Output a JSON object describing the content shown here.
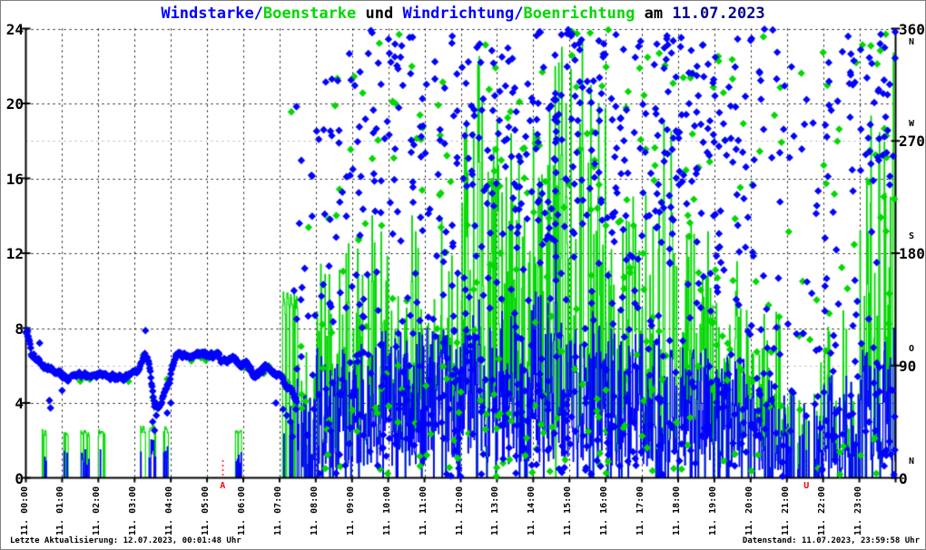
{
  "title": {
    "parts": [
      {
        "text": "Windstarke/",
        "color": "#0000ff"
      },
      {
        "text": "Boenstarke",
        "color": "#00d800"
      },
      {
        "text": " und ",
        "color": "#000000"
      },
      {
        "text": "Windrichtung/",
        "color": "#0000ff"
      },
      {
        "text": "Boenrichtung",
        "color": "#00d800"
      },
      {
        "text": " am ",
        "color": "#000000"
      },
      {
        "text": "11.07.2023",
        "color": "#000090"
      }
    ]
  },
  "footer": {
    "last_update": "Letzte Aktualisierung: 12.07.2023, 00:01:48 Uhr",
    "datenstand": "Datenstand: 11.07.2023, 23:59:58 Uhr"
  },
  "chart_data": {
    "type": "line+scatter",
    "seed": 20230711,
    "x_axis": {
      "range_hours": [
        0,
        24
      ],
      "tick_labels": [
        "11. 00:00",
        "11. 01:00",
        "11. 02:00",
        "11. 03:00",
        "11. 04:00",
        "11. 05:00",
        "11. 06:00",
        "11. 07:00",
        "11. 08:00",
        "11. 09:00",
        "11. 10:00",
        "11. 11:00",
        "11. 12:00",
        "11. 13:00",
        "11. 14:00",
        "11. 15:00",
        "11. 16:00",
        "11. 17:00",
        "11. 18:00",
        "11. 19:00",
        "11. 20:00",
        "11. 21:00",
        "11. 22:00",
        "11. 23:00"
      ]
    },
    "y_left": {
      "range": [
        0,
        24
      ],
      "ticks": [
        0,
        4,
        8,
        12,
        16,
        20,
        24
      ]
    },
    "y_right": {
      "range": [
        0,
        360
      ],
      "ticks": [
        0,
        90,
        180,
        270,
        360
      ],
      "compass": [
        "N",
        "O",
        "S",
        "W",
        "N"
      ],
      "gray_gridlines_deg": [
        90,
        270
      ]
    },
    "sun_markers": [
      {
        "label": "A",
        "time_h": 5.43,
        "color": "#ff0000"
      },
      {
        "label": "U",
        "time_h": 21.54,
        "color": "#ff0000"
      }
    ],
    "colors": {
      "wind": "#0000ff",
      "gust": "#00d800",
      "grid": "#000000",
      "grid_gray": "#b0b0b0",
      "background": "#ffffff"
    },
    "series": {
      "windstaerke": {
        "legend": "Windstarke",
        "axis": "left",
        "color": "#0000ff",
        "hourly_max": [
          1.6,
          1.6,
          1.6,
          2.2,
          0.2,
          1.6,
          0.2,
          5.5,
          7,
          8,
          8,
          8.5,
          9,
          9,
          10,
          9,
          8.5,
          8,
          7,
          6.5,
          5.5,
          4.5,
          5.5,
          8
        ],
        "hourly_activity": [
          0.07,
          0.12,
          0.08,
          0.25,
          0.01,
          0.06,
          0.02,
          0.55,
          0.85,
          0.92,
          0.95,
          0.95,
          0.95,
          0.95,
          0.95,
          0.95,
          0.93,
          0.93,
          0.92,
          0.88,
          0.75,
          0.45,
          0.75,
          0.88
        ],
        "events": [
          [
            12.5,
            9.5
          ],
          [
            14.62,
            12.5
          ],
          [
            23.95,
            8
          ]
        ]
      },
      "boenstaerke": {
        "legend": "Boenstarke",
        "axis": "left",
        "color": "#00d800",
        "hourly_max": [
          2.6,
          2.6,
          2.6,
          2.8,
          0.3,
          2.6,
          0.3,
          10,
          12.5,
          14,
          14,
          15,
          22.5,
          19,
          23.5,
          23,
          17,
          19,
          14,
          12,
          9,
          8,
          9,
          23
        ],
        "morning_windows": [
          [
            0.44,
            0.56
          ],
          [
            1.04,
            1.16
          ],
          [
            1.5,
            1.78
          ],
          [
            2.0,
            2.17
          ],
          [
            3.12,
            3.3
          ],
          [
            3.38,
            3.58
          ],
          [
            3.8,
            3.92
          ],
          [
            5.78,
            5.95
          ],
          [
            7.08,
            7.5
          ]
        ],
        "events": [
          [
            8.9,
            12.5
          ],
          [
            9.55,
            14
          ],
          [
            10.65,
            14
          ],
          [
            12.5,
            22.5
          ],
          [
            12.85,
            16
          ],
          [
            13.0,
            19
          ],
          [
            14.15,
            15
          ],
          [
            14.78,
            23
          ],
          [
            14.9,
            20
          ],
          [
            15.35,
            23.5
          ],
          [
            15.8,
            20
          ],
          [
            16.75,
            15
          ],
          [
            17.6,
            19
          ],
          [
            17.8,
            18.5
          ],
          [
            23.93,
            22.7
          ]
        ]
      },
      "windrichtung": {
        "legend": "Windrichtung",
        "axis": "right",
        "color": "#0000ff",
        "morning_line_deg": [
          [
            0,
            116
          ],
          [
            0.08,
            112
          ],
          [
            0.15,
            99
          ],
          [
            0.35,
            95
          ],
          [
            0.55,
            89
          ],
          [
            0.75,
            87
          ],
          [
            1.0,
            82
          ],
          [
            1.2,
            80
          ],
          [
            1.45,
            84
          ],
          [
            1.7,
            82
          ],
          [
            1.95,
            83
          ],
          [
            2.2,
            82
          ],
          [
            2.45,
            82
          ],
          [
            2.7,
            80
          ],
          [
            2.9,
            83
          ],
          [
            3.1,
            86
          ],
          [
            3.25,
            96
          ],
          [
            3.35,
            99
          ],
          [
            3.45,
            80
          ],
          [
            3.55,
            60
          ],
          [
            3.65,
            55
          ],
          [
            3.75,
            63
          ],
          [
            3.85,
            70
          ],
          [
            3.95,
            75
          ],
          [
            4.05,
            88
          ],
          [
            4.15,
            97
          ],
          [
            4.3,
            98
          ],
          [
            5.3,
            98
          ],
          [
            5.45,
            92
          ],
          [
            5.6,
            94
          ],
          [
            5.75,
            95
          ],
          [
            5.9,
            91
          ],
          [
            6.05,
            92
          ],
          [
            6.2,
            86
          ],
          [
            6.35,
            82
          ],
          [
            6.5,
            86
          ],
          [
            6.65,
            88
          ],
          [
            6.8,
            84
          ],
          [
            7.0,
            83
          ],
          [
            7.15,
            76
          ],
          [
            7.3,
            70
          ],
          [
            7.45,
            62
          ]
        ],
        "morning_strays_deg": [
          [
            0.05,
            118
          ],
          [
            0.38,
            108
          ],
          [
            0.65,
            62
          ],
          [
            0.68,
            56
          ],
          [
            1.0,
            70
          ],
          [
            3.3,
            118
          ],
          [
            3.5,
            45
          ],
          [
            3.55,
            38
          ],
          [
            3.6,
            50
          ],
          [
            3.9,
            52
          ],
          [
            4.0,
            60
          ],
          [
            6.9,
            60
          ],
          [
            7.1,
            55
          ],
          [
            7.2,
            50
          ],
          [
            7.3,
            45
          ],
          [
            7.4,
            150
          ],
          [
            7.45,
            55
          ]
        ],
        "hourly_scatter_counts": [
          0,
          0,
          0,
          0,
          0,
          0,
          0,
          20,
          45,
          55,
          60,
          60,
          65,
          70,
          70,
          70,
          65,
          70,
          65,
          60,
          50,
          28,
          50,
          60
        ],
        "hourly_bands": [
          null,
          null,
          null,
          null,
          null,
          null,
          null,
          [
            [
              15,
              150,
              0.75
            ],
            [
              150,
              330,
              0.25
            ]
          ],
          [
            [
              0,
              160,
              0.55
            ],
            [
              160,
              360,
              0.45
            ]
          ],
          [
            [
              0,
              160,
              0.5
            ],
            [
              160,
              360,
              0.5
            ]
          ],
          [
            [
              0,
              90,
              0.28
            ],
            [
              90,
              200,
              0.22
            ],
            [
              200,
              360,
              0.5
            ]
          ],
          [
            [
              0,
              90,
              0.25
            ],
            [
              90,
              200,
              0.2
            ],
            [
              200,
              360,
              0.55
            ]
          ],
          [
            [
              0,
              90,
              0.25
            ],
            [
              90,
              200,
              0.2
            ],
            [
              200,
              360,
              0.55
            ]
          ],
          [
            [
              0,
              90,
              0.28
            ],
            [
              90,
              200,
              0.17
            ],
            [
              200,
              360,
              0.55
            ]
          ],
          [
            [
              0,
              90,
              0.3
            ],
            [
              90,
              200,
              0.2
            ],
            [
              200,
              360,
              0.5
            ]
          ],
          [
            [
              0,
              90,
              0.25
            ],
            [
              90,
              200,
              0.2
            ],
            [
              200,
              360,
              0.55
            ]
          ],
          [
            [
              0,
              90,
              0.3
            ],
            [
              90,
              200,
              0.25
            ],
            [
              200,
              360,
              0.45
            ]
          ],
          [
            [
              0,
              90,
              0.25
            ],
            [
              90,
              200,
              0.2
            ],
            [
              200,
              360,
              0.55
            ]
          ],
          [
            [
              0,
              90,
              0.28
            ],
            [
              90,
              200,
              0.24
            ],
            [
              200,
              360,
              0.48
            ]
          ],
          [
            [
              0,
              90,
              0.3
            ],
            [
              90,
              200,
              0.3
            ],
            [
              200,
              360,
              0.4
            ]
          ],
          [
            [
              0,
              120,
              0.5
            ],
            [
              120,
              250,
              0.25
            ],
            [
              250,
              360,
              0.25
            ]
          ],
          [
            [
              0,
              120,
              0.5
            ],
            [
              120,
              250,
              0.3
            ],
            [
              250,
              360,
              0.2
            ]
          ],
          [
            [
              0,
              130,
              0.45
            ],
            [
              130,
              260,
              0.25
            ],
            [
              260,
              360,
              0.3
            ]
          ],
          [
            [
              0,
              100,
              0.35
            ],
            [
              100,
              250,
              0.25
            ],
            [
              250,
              360,
              0.4
            ]
          ]
        ],
        "columns": [
          [
            14.62,
            150,
            360,
            14
          ]
        ]
      },
      "boenrichtung": {
        "legend": "Boenrichtung",
        "axis": "right",
        "color": "#00d800",
        "hourly_scatter_counts": [
          0,
          0,
          0,
          0,
          0,
          0,
          0,
          7,
          15,
          18,
          20,
          20,
          22,
          24,
          24,
          24,
          22,
          24,
          22,
          20,
          16,
          9,
          16,
          20
        ]
      }
    }
  }
}
